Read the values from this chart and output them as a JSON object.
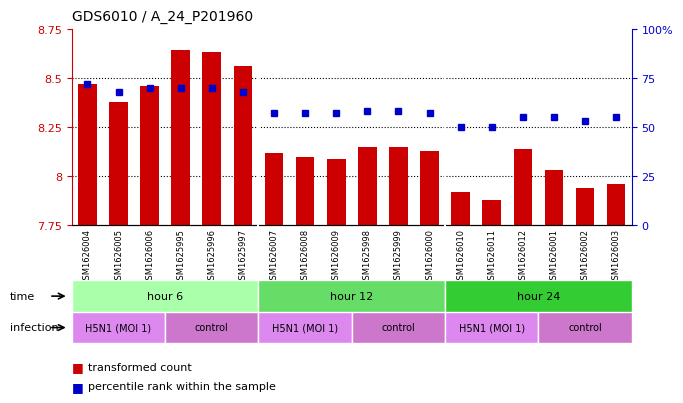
{
  "title": "GDS6010 / A_24_P201960",
  "samples": [
    "GSM1626004",
    "GSM1626005",
    "GSM1626006",
    "GSM1625995",
    "GSM1625996",
    "GSM1625997",
    "GSM1626007",
    "GSM1626008",
    "GSM1626009",
    "GSM1625998",
    "GSM1625999",
    "GSM1626000",
    "GSM1626010",
    "GSM1626011",
    "GSM1626012",
    "GSM1626001",
    "GSM1626002",
    "GSM1626003"
  ],
  "bar_values": [
    8.47,
    8.38,
    8.46,
    8.64,
    8.63,
    8.56,
    8.12,
    8.1,
    8.09,
    8.15,
    8.15,
    8.13,
    7.92,
    7.88,
    8.14,
    8.03,
    7.94,
    7.96
  ],
  "dot_values": [
    72,
    68,
    70,
    70,
    70,
    68,
    57,
    57,
    57,
    58,
    58,
    57,
    50,
    50,
    55,
    55,
    53,
    55
  ],
  "ymin": 7.75,
  "ymax": 8.75,
  "y_ticks": [
    7.75,
    8.0,
    8.25,
    8.5,
    8.75
  ],
  "y_tick_labels": [
    "7.75",
    "8",
    "8.25",
    "8.5",
    "8.75"
  ],
  "y2min": 0,
  "y2max": 100,
  "y2_ticks": [
    0,
    25,
    50,
    75,
    100
  ],
  "y2_tick_labels": [
    "0",
    "25",
    "50",
    "75",
    "100%"
  ],
  "bar_color": "#cc0000",
  "dot_color": "#0000cc",
  "time_groups": [
    {
      "label": "hour 6",
      "start": 0,
      "end": 6,
      "color": "#aaffaa"
    },
    {
      "label": "hour 12",
      "start": 6,
      "end": 12,
      "color": "#66dd66"
    },
    {
      "label": "hour 24",
      "start": 12,
      "end": 18,
      "color": "#33cc33"
    }
  ],
  "infection_groups": [
    {
      "label": "H5N1 (MOI 1)",
      "start": 0,
      "end": 3,
      "color": "#dd88dd"
    },
    {
      "label": "control",
      "start": 3,
      "end": 6,
      "color": "#cc88cc"
    },
    {
      "label": "H5N1 (MOI 1)",
      "start": 6,
      "end": 9,
      "color": "#dd88dd"
    },
    {
      "label": "control",
      "start": 9,
      "end": 12,
      "color": "#cc88cc"
    },
    {
      "label": "H5N1 (MOI 1)",
      "start": 12,
      "end": 15,
      "color": "#dd88dd"
    },
    {
      "label": "control",
      "start": 15,
      "end": 18,
      "color": "#cc88cc"
    }
  ],
  "legend_items": [
    {
      "label": "transformed count",
      "color": "#cc0000",
      "marker": "s"
    },
    {
      "label": "percentile rank within the sample",
      "color": "#0000cc",
      "marker": "s"
    }
  ],
  "grid_color": "black",
  "grid_linestyle": "dotted",
  "tick_color_left": "#cc0000",
  "tick_color_right": "#0000cc",
  "xlabel_color": "#555555",
  "bar_width": 0.6
}
